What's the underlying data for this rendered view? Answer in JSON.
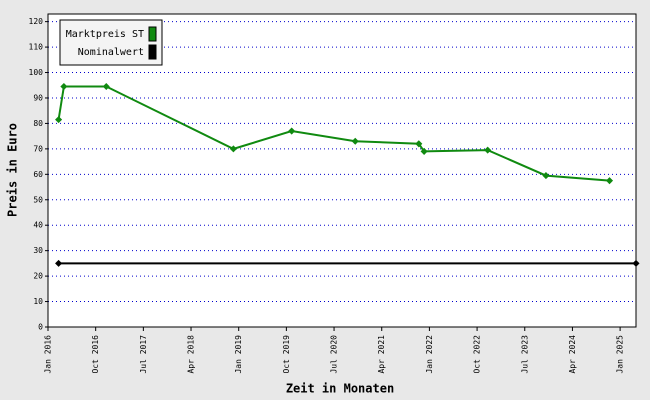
{
  "chart_data": {
    "type": "line",
    "x_label": "Zeit in Monaten",
    "y_label": "Preis in Euro",
    "xlim": [
      "2016-01",
      "2025-04"
    ],
    "xticks": [
      {
        "value": "2016-01",
        "label": "Jan 2016"
      },
      {
        "value": "2016-10",
        "label": "Oct 2016"
      },
      {
        "value": "2017-07",
        "label": "Jul 2017"
      },
      {
        "value": "2018-04",
        "label": "Apr 2018"
      },
      {
        "value": "2019-01",
        "label": "Jan 2019"
      },
      {
        "value": "2019-10",
        "label": "Oct 2019"
      },
      {
        "value": "2020-07",
        "label": "Jul 2020"
      },
      {
        "value": "2021-04",
        "label": "Apr 2021"
      },
      {
        "value": "2022-01",
        "label": "Jan 2022"
      },
      {
        "value": "2022-10",
        "label": "Oct 2022"
      },
      {
        "value": "2023-07",
        "label": "Jul 2023"
      },
      {
        "value": "2024-04",
        "label": "Apr 2024"
      },
      {
        "value": "2025-01",
        "label": "Jan 2025"
      }
    ],
    "ylim": [
      0,
      123
    ],
    "yticks": [
      0,
      10,
      20,
      30,
      40,
      50,
      60,
      70,
      80,
      90,
      100,
      110,
      120
    ],
    "grid": true,
    "legend": "top-left",
    "series": [
      {
        "name": "Marktpreis ST",
        "color": "#108a10",
        "x": [
          "2016-03",
          "2016-04",
          "2016-12",
          "2018-12",
          "2019-11",
          "2020-11",
          "2021-11",
          "2021-12",
          "2022-12",
          "2023-11",
          "2024-11"
        ],
        "values": [
          81.5,
          94.5,
          94.5,
          70,
          77,
          73,
          72,
          69,
          69.5,
          59.5,
          57.5
        ]
      },
      {
        "name": "Nominalwert",
        "color": "#000000",
        "x": [
          "2016-03",
          "2025-04"
        ],
        "values": [
          25,
          25
        ]
      }
    ]
  }
}
